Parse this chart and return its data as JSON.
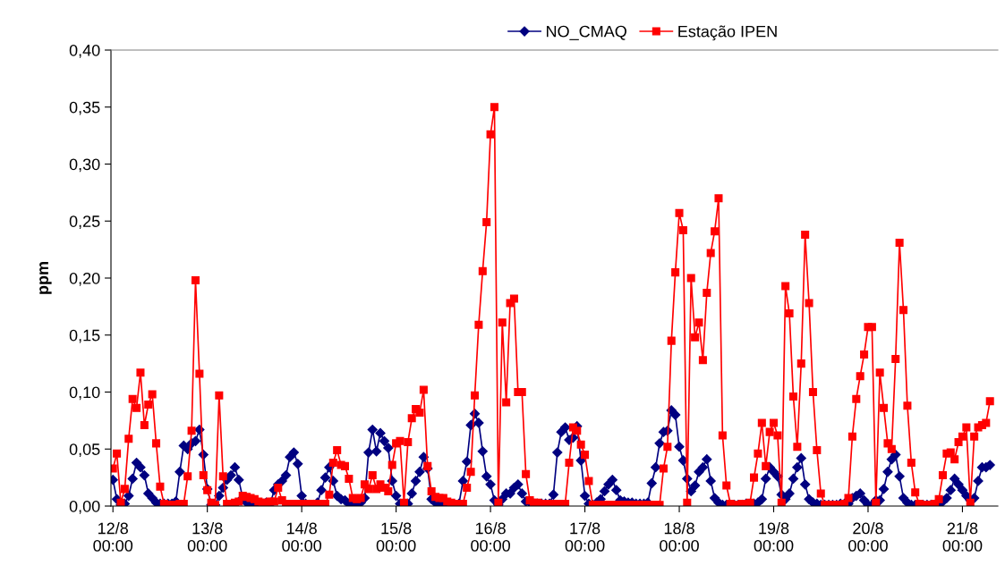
{
  "chart_data": {
    "type": "line",
    "ylabel": "ppm",
    "legend": "top",
    "grid": false,
    "categories": [
      "12/8\n00:00",
      null,
      null,
      null,
      null,
      null,
      null,
      null,
      null,
      null,
      null,
      null,
      null,
      null,
      null,
      null,
      null,
      null,
      null,
      null,
      null,
      null,
      null,
      null,
      "13/8\n00:00",
      null,
      null,
      null,
      null,
      null,
      null,
      null,
      null,
      null,
      null,
      null,
      null,
      null,
      null,
      null,
      null,
      null,
      null,
      null,
      null,
      null,
      null,
      null,
      "14/8\n00:00",
      null,
      null,
      null,
      null,
      null,
      null,
      null,
      null,
      null,
      null,
      null,
      null,
      null,
      null,
      null,
      null,
      null,
      null,
      null,
      null,
      null,
      null,
      null,
      "15/8\n00:00",
      null,
      null,
      null,
      null,
      null,
      null,
      null,
      null,
      null,
      null,
      null,
      null,
      null,
      null,
      null,
      null,
      null,
      null,
      null,
      null,
      null,
      null,
      null,
      "16/8\n00:00",
      null,
      null,
      null,
      null,
      null,
      null,
      null,
      null,
      null,
      null,
      null,
      null,
      null,
      null,
      null,
      null,
      null,
      null,
      null,
      null,
      null,
      null,
      null,
      "17/8\n00:00",
      null,
      null,
      null,
      null,
      null,
      null,
      null,
      null,
      null,
      null,
      null,
      null,
      null,
      null,
      null,
      null,
      null,
      null,
      null,
      null,
      null,
      null,
      null,
      "18/8\n00:00",
      null,
      null,
      null,
      null,
      null,
      null,
      null,
      null,
      null,
      null,
      null,
      null,
      null,
      null,
      null,
      null,
      null,
      null,
      null,
      null,
      null,
      null,
      null,
      "19/8\n00:00",
      null,
      null,
      null,
      null,
      null,
      null,
      null,
      null,
      null,
      null,
      null,
      null,
      null,
      null,
      null,
      null,
      null,
      null,
      null,
      null,
      null,
      null,
      null,
      "20/8\n00:00",
      null,
      null,
      null,
      null,
      null,
      null,
      null,
      null,
      null,
      null,
      null,
      null,
      null,
      null,
      null,
      null,
      null,
      null,
      null,
      null,
      null,
      null,
      null,
      "21/8\n00:00",
      null,
      null,
      null,
      null,
      null,
      null,
      null
    ],
    "ylim": [
      0,
      0.4
    ],
    "yticks": [
      {
        "value": 0,
        "label": "0,00"
      },
      {
        "value": 0.05,
        "label": "0,05"
      },
      {
        "value": 0.1,
        "label": "0,10"
      },
      {
        "value": 0.15,
        "label": "0,15"
      },
      {
        "value": 0.2,
        "label": "0,20"
      },
      {
        "value": 0.25,
        "label": "0,25"
      },
      {
        "value": 0.3,
        "label": "0,30"
      },
      {
        "value": 0.35,
        "label": "0,35"
      },
      {
        "value": 0.4,
        "label": "0,40"
      }
    ],
    "series": [
      {
        "name": "NO_CMAQ",
        "color": "#000080",
        "marker": "diamond",
        "values": [
          0.023,
          0.006,
          0.001,
          0.002,
          0.009,
          0.024,
          0.038,
          0.034,
          0.027,
          0.011,
          0.007,
          0.003,
          0.002,
          0.002,
          0.002,
          0.002,
          0.004,
          0.03,
          0.053,
          0.05,
          0.055,
          0.057,
          0.067,
          0.045,
          0.015,
          0.001,
          0.001,
          0.009,
          0.016,
          0.023,
          0.027,
          0.034,
          0.023,
          0.007,
          0.003,
          0.002,
          0.001,
          0.001,
          0.001,
          0.003,
          0.002,
          0.014,
          0.019,
          0.022,
          0.027,
          0.043,
          0.047,
          0.037,
          0.009,
          0.002,
          0.001,
          0.001,
          0.003,
          0.014,
          0.025,
          0.034,
          0.022,
          0.009,
          0.006,
          0.005,
          0.002,
          0.002,
          0.002,
          0.003,
          0.007,
          0.047,
          0.067,
          0.048,
          0.064,
          0.057,
          0.051,
          0.022,
          0.009,
          0.002,
          0.001,
          0.002,
          0.011,
          0.022,
          0.03,
          0.043,
          0.033,
          0.006,
          0.003,
          0.002,
          0.001,
          0.001,
          0.001,
          0.001,
          0.002,
          0.022,
          0.039,
          0.071,
          0.081,
          0.073,
          0.048,
          0.026,
          0.019,
          0.005,
          0.001,
          0.006,
          0.011,
          0.011,
          0.016,
          0.019,
          0.011,
          0.004,
          0.003,
          0.002,
          0.002,
          0.002,
          0.002,
          0.002,
          0.01,
          0.047,
          0.065,
          0.069,
          0.058,
          0.06,
          0.07,
          0.04,
          0.009,
          0.002,
          0.001,
          0.003,
          0.006,
          0.013,
          0.019,
          0.023,
          0.014,
          0.005,
          0.004,
          0.003,
          0.003,
          0.002,
          0.002,
          0.002,
          0.003,
          0.02,
          0.034,
          0.055,
          0.065,
          0.066,
          0.084,
          0.08,
          0.052,
          0.04,
          0.024,
          0.013,
          0.018,
          0.03,
          0.034,
          0.041,
          0.022,
          0.007,
          0.003,
          0.001,
          0.001,
          0.001,
          0.001,
          0.001,
          0.001,
          0.002,
          0.002,
          0.002,
          0.003,
          0.006,
          0.024,
          0.034,
          0.03,
          0.026,
          0.01,
          0.006,
          0.011,
          0.024,
          0.034,
          0.042,
          0.019,
          0.006,
          0.003,
          0.002,
          0.001,
          0.001,
          0.001,
          0.001,
          0.001,
          0.002,
          0.002,
          0.002,
          0.007,
          0.009,
          0.011,
          0.005,
          0.001,
          0.001,
          0.005,
          0.005,
          0.015,
          0.03,
          0.041,
          0.045,
          0.026,
          0.007,
          0.003,
          0.001,
          0.001,
          0.001,
          0.001,
          0.001,
          0.001,
          0.001,
          0.002,
          0.004,
          0.007,
          0.014,
          0.024,
          0.019,
          0.014,
          0.009,
          0.005,
          0.007,
          0.022,
          0.034,
          0.034,
          0.036
        ]
      },
      {
        "name": "Estação IPEN",
        "color": "#ff0000",
        "marker": "square",
        "values": [
          0.033,
          0.046,
          0.003,
          0.015,
          0.059,
          0.094,
          0.086,
          0.117,
          0.071,
          0.089,
          0.098,
          0.055,
          0.017,
          0.002,
          0.001,
          0.001,
          0.001,
          0.002,
          0.002,
          0.026,
          0.066,
          0.198,
          0.116,
          0.027,
          0.014,
          0.003,
          0.001,
          0.097,
          0.026,
          0.002,
          0.002,
          0.003,
          0.004,
          0.009,
          0.008,
          0.007,
          0.006,
          0.004,
          0.003,
          0.003,
          0.004,
          0.004,
          0.016,
          0.005,
          0.002,
          0.002,
          0.002,
          0.002,
          0.002,
          0.002,
          0.002,
          0.002,
          0.002,
          0.002,
          0.002,
          0.01,
          0.038,
          0.049,
          0.036,
          0.035,
          0.024,
          0.007,
          0.006,
          0.007,
          0.019,
          0.015,
          0.027,
          0.015,
          0.019,
          0.016,
          0.013,
          0.036,
          0.055,
          0.057,
          0.003,
          0.056,
          0.077,
          0.085,
          0.082,
          0.102,
          0.035,
          0.013,
          0.008,
          0.007,
          0.007,
          0.004,
          0.003,
          0.002,
          0.002,
          0.002,
          0.016,
          0.03,
          0.097,
          0.159,
          0.206,
          0.249,
          0.326,
          0.35,
          0.003,
          0.161,
          0.091,
          0.178,
          0.182,
          0.1,
          0.1,
          0.028,
          0.005,
          0.003,
          0.003,
          0.002,
          0.002,
          0.002,
          0.002,
          0.002,
          0.002,
          0.002,
          0.038,
          0.069,
          0.066,
          0.054,
          0.045,
          0.022,
          0.001,
          0.001,
          0.001,
          0.001,
          0.001,
          0.001,
          0.001,
          0.001,
          0.001,
          0.001,
          0.001,
          0.001,
          0.001,
          0.001,
          0.001,
          0.001,
          0.001,
          0.001,
          0.033,
          0.052,
          0.145,
          0.205,
          0.257,
          0.242,
          0.003,
          0.2,
          0.148,
          0.161,
          0.128,
          0.187,
          0.222,
          0.241,
          0.27,
          0.062,
          0.018,
          0.002,
          0.001,
          0.001,
          0.002,
          0.002,
          0.003,
          0.025,
          0.046,
          0.073,
          0.035,
          0.065,
          0.073,
          0.062,
          0.003,
          0.193,
          0.169,
          0.096,
          0.052,
          0.125,
          0.238,
          0.178,
          0.1,
          0.049,
          0.011,
          0.001,
          0.001,
          0.001,
          0.001,
          0.001,
          0.002,
          0.007,
          0.061,
          0.094,
          0.114,
          0.133,
          0.157,
          0.157,
          0.003,
          0.117,
          0.086,
          0.055,
          0.05,
          0.129,
          0.231,
          0.172,
          0.088,
          0.038,
          0.012,
          0.002,
          0.001,
          0.001,
          0.001,
          0.002,
          0.006,
          0.027,
          0.046,
          0.047,
          0.041,
          0.056,
          0.061,
          0.069,
          0.003,
          0.061,
          0.069,
          0.071,
          0.073,
          0.092
        ]
      }
    ]
  }
}
